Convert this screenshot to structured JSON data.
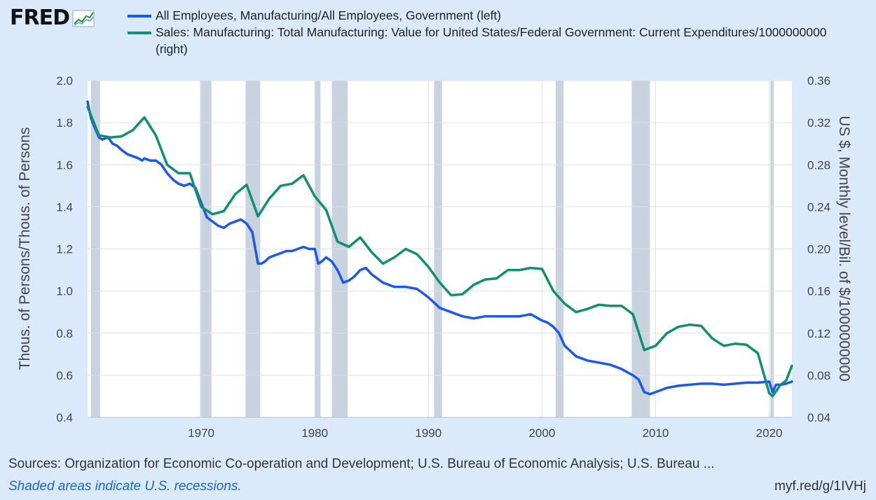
{
  "brand": {
    "logo_text": "FRED",
    "logo_icon": "line-graph-icon"
  },
  "legend": [
    {
      "label": "All Employees, Manufacturing/All Employees, Government (left)",
      "color": "#1b58ef"
    },
    {
      "label": "Sales: Manufacturing: Total Manufacturing: Value for United States/Federal Government: Current Expenditures/1000000000 (right)",
      "color": "#10906f"
    }
  ],
  "axes": {
    "left_title": "Thous. of Persons/Thous. of Persons",
    "right_title": "US $, Monthly level/Bil. of $/1000000000",
    "left_ticks": [
      "2.0",
      "1.8",
      "1.6",
      "1.4",
      "1.2",
      "1.0",
      "0.8",
      "0.6",
      "0.4"
    ],
    "right_ticks": [
      "0.36",
      "0.32",
      "0.28",
      "0.24",
      "0.20",
      "0.16",
      "0.12",
      "0.08",
      "0.04"
    ],
    "x_ticks": [
      "1970",
      "1980",
      "1990",
      "2000",
      "2010",
      "2020"
    ]
  },
  "footer": {
    "sources": "Sources: Organization for Economic Co-operation and Development; U.S. Bureau of Economic Analysis; U.S. Bureau ...",
    "note": "Shaded areas indicate U.S. recessions.",
    "url": "myf.red/g/1IVHj"
  },
  "chart_data": {
    "type": "line",
    "xlim": [
      1960.0,
      2022.0
    ],
    "ylim_left": [
      0.4,
      2.0
    ],
    "ylim_right": [
      0.04,
      0.36
    ],
    "grid": true,
    "legend_position": "top",
    "recessions": [
      [
        1960.3,
        1961.1
      ],
      [
        1969.9,
        1970.9
      ],
      [
        1973.9,
        1975.2
      ],
      [
        1980.0,
        1980.5
      ],
      [
        1981.5,
        1982.9
      ],
      [
        1990.5,
        1991.2
      ],
      [
        2001.2,
        2001.9
      ],
      [
        2007.9,
        2009.5
      ],
      [
        2020.1,
        2020.4
      ]
    ],
    "series": [
      {
        "name": "All Employees, Manufacturing/All Employees, Government (left)",
        "axis": "left",
        "color": "#1b58ef",
        "x": [
          1960.0,
          1960.3,
          1960.6,
          1961.0,
          1961.3,
          1961.8,
          1962.2,
          1962.6,
          1963.0,
          1963.5,
          1964.0,
          1964.5,
          1964.8,
          1965.0,
          1965.5,
          1966.0,
          1966.5,
          1967.0,
          1967.5,
          1968.0,
          1968.5,
          1969.0,
          1969.5,
          1970.0,
          1970.5,
          1971.0,
          1971.5,
          1972.0,
          1972.5,
          1973.0,
          1973.5,
          1974.0,
          1974.5,
          1975.0,
          1975.3,
          1975.6,
          1976.0,
          1976.5,
          1977.0,
          1977.5,
          1978.0,
          1978.5,
          1979.0,
          1979.5,
          1980.0,
          1980.3,
          1980.6,
          1981.0,
          1981.5,
          1982.0,
          1982.5,
          1983.0,
          1983.5,
          1984.0,
          1984.5,
          1985.0,
          1986.0,
          1987.0,
          1988.0,
          1989.0,
          1990.0,
          1991.0,
          1992.0,
          1993.0,
          1994.0,
          1995.0,
          1996.0,
          1997.0,
          1998.0,
          1999.0,
          2000.0,
          2000.5,
          2001.0,
          2001.5,
          2002.0,
          2003.0,
          2004.0,
          2005.0,
          2006.0,
          2007.0,
          2008.0,
          2008.5,
          2009.0,
          2009.5,
          2010.0,
          2011.0,
          2012.0,
          2013.0,
          2014.0,
          2015.0,
          2016.0,
          2017.0,
          2018.0,
          2019.0,
          2020.0,
          2020.3,
          2020.6,
          2021.0,
          2021.5,
          2022.0
        ],
        "y": [
          1.9,
          1.82,
          1.78,
          1.73,
          1.72,
          1.73,
          1.7,
          1.69,
          1.67,
          1.65,
          1.64,
          1.63,
          1.62,
          1.63,
          1.62,
          1.62,
          1.6,
          1.56,
          1.53,
          1.51,
          1.5,
          1.51,
          1.49,
          1.42,
          1.35,
          1.33,
          1.31,
          1.3,
          1.32,
          1.33,
          1.34,
          1.32,
          1.28,
          1.13,
          1.13,
          1.14,
          1.16,
          1.17,
          1.18,
          1.19,
          1.19,
          1.2,
          1.21,
          1.2,
          1.2,
          1.13,
          1.14,
          1.16,
          1.14,
          1.1,
          1.04,
          1.05,
          1.07,
          1.1,
          1.11,
          1.08,
          1.04,
          1.02,
          1.02,
          1.01,
          0.97,
          0.92,
          0.9,
          0.88,
          0.87,
          0.88,
          0.88,
          0.88,
          0.88,
          0.89,
          0.86,
          0.85,
          0.83,
          0.8,
          0.74,
          0.69,
          0.67,
          0.66,
          0.65,
          0.63,
          0.6,
          0.58,
          0.52,
          0.51,
          0.52,
          0.54,
          0.55,
          0.555,
          0.56,
          0.56,
          0.555,
          0.56,
          0.565,
          0.565,
          0.57,
          0.52,
          0.555,
          0.555,
          0.56,
          0.57
        ]
      },
      {
        "name": "Sales: Manufacturing: Total Manufacturing: Value for United States/Federal Government: Current Expenditures/1000000000 (right)",
        "axis": "right",
        "color": "#10906f",
        "x": [
          1960.0,
          1961.0,
          1962.0,
          1963.0,
          1964.0,
          1965.0,
          1966.0,
          1967.0,
          1968.0,
          1969.0,
          1970.0,
          1971.0,
          1972.0,
          1973.0,
          1974.0,
          1975.0,
          1976.0,
          1977.0,
          1978.0,
          1979.0,
          1980.0,
          1981.0,
          1982.0,
          1983.0,
          1984.0,
          1985.0,
          1986.0,
          1987.0,
          1988.0,
          1989.0,
          1990.0,
          1991.0,
          1992.0,
          1993.0,
          1994.0,
          1995.0,
          1996.0,
          1997.0,
          1998.0,
          1999.0,
          2000.0,
          2001.0,
          2002.0,
          2003.0,
          2004.0,
          2005.0,
          2006.0,
          2007.0,
          2008.0,
          2009.0,
          2010.0,
          2011.0,
          2012.0,
          2013.0,
          2014.0,
          2015.0,
          2016.0,
          2017.0,
          2018.0,
          2019.0,
          2020.0,
          2020.3,
          2021.0,
          2021.5,
          2022.0
        ],
        "y": [
          0.335,
          0.308,
          0.306,
          0.307,
          0.313,
          0.325,
          0.308,
          0.28,
          0.272,
          0.272,
          0.24,
          0.233,
          0.236,
          0.252,
          0.261,
          0.231,
          0.248,
          0.26,
          0.262,
          0.27,
          0.25,
          0.237,
          0.207,
          0.202,
          0.211,
          0.197,
          0.186,
          0.192,
          0.2,
          0.195,
          0.183,
          0.168,
          0.156,
          0.157,
          0.166,
          0.171,
          0.172,
          0.18,
          0.18,
          0.182,
          0.181,
          0.16,
          0.148,
          0.14,
          0.143,
          0.147,
          0.146,
          0.146,
          0.138,
          0.104,
          0.108,
          0.12,
          0.126,
          0.128,
          0.127,
          0.115,
          0.108,
          0.11,
          0.109,
          0.101,
          0.063,
          0.06,
          0.071,
          0.075,
          0.089
        ]
      }
    ]
  }
}
